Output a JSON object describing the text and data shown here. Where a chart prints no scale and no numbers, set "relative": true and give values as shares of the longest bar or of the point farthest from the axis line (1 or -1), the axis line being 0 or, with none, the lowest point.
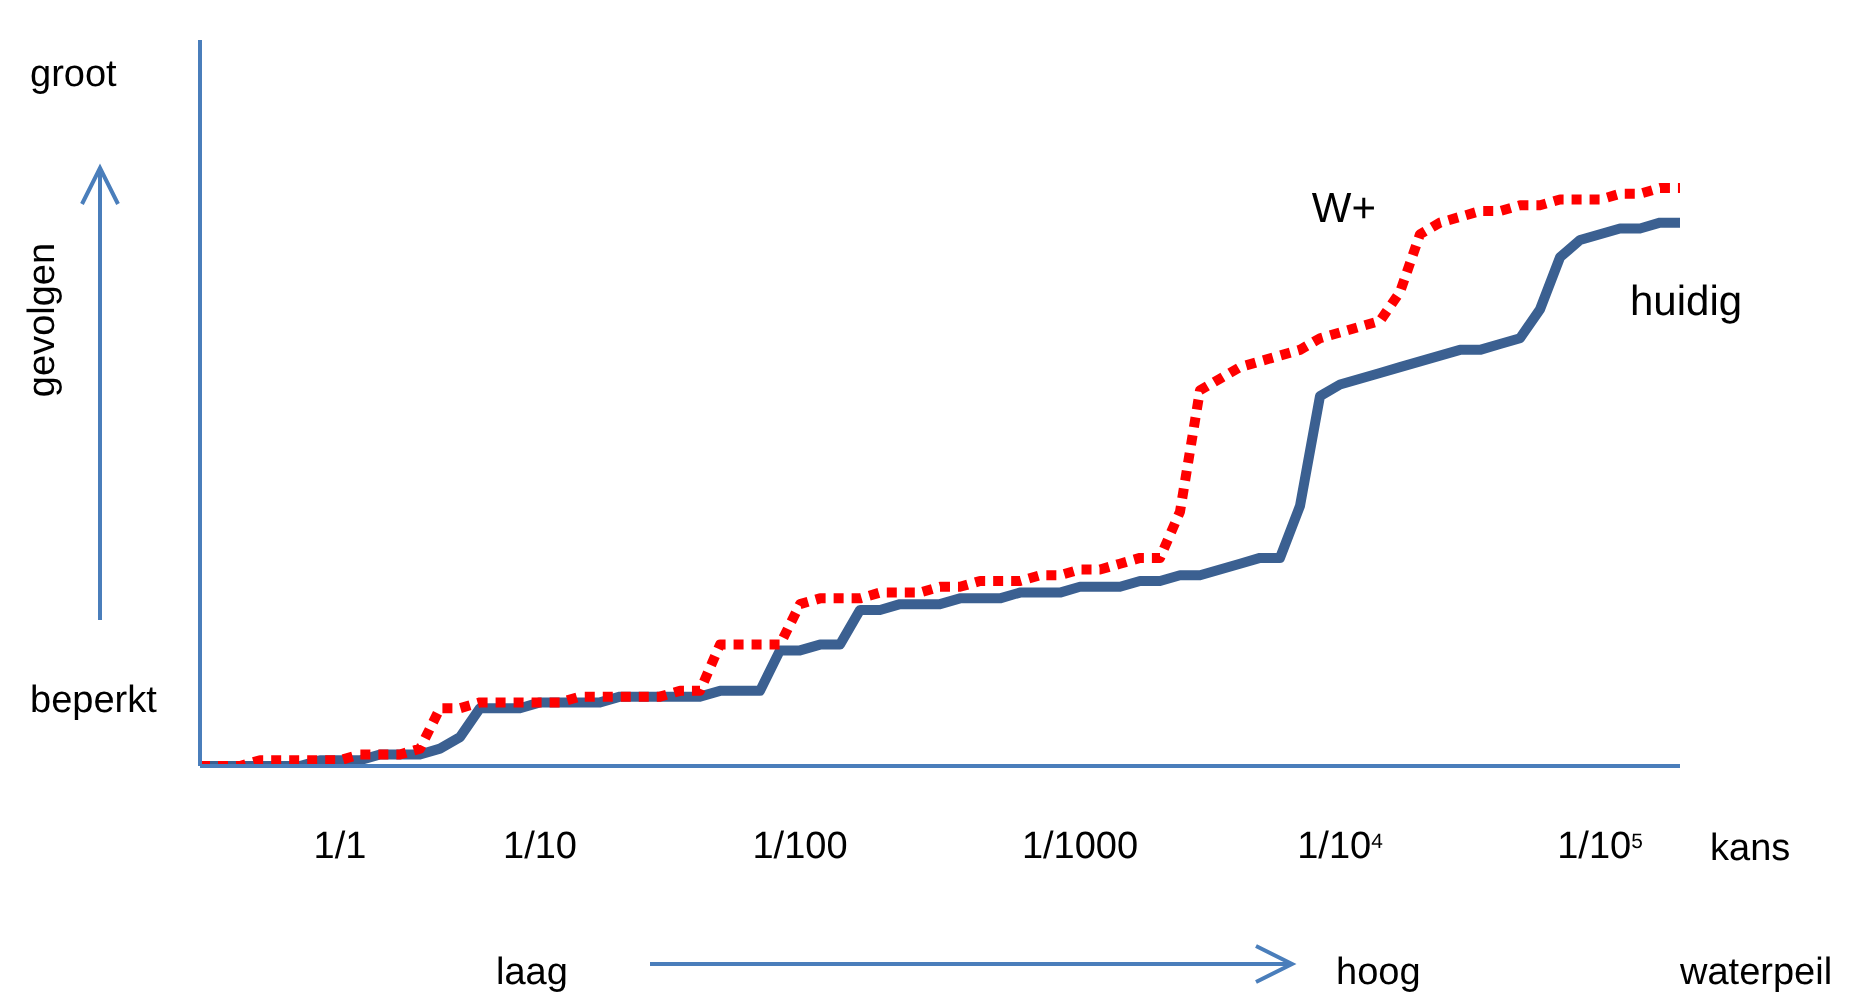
{
  "chart_data": {
    "type": "line",
    "relative": true,
    "ylabel": "gevolgen",
    "xlabel": "kans",
    "categories": [
      null,
      null,
      null,
      null,
      null,
      null,
      null,
      "1/1",
      null,
      null,
      null,
      null,
      null,
      null,
      null,
      null,
      null,
      "1/10",
      null,
      null,
      null,
      null,
      null,
      null,
      null,
      null,
      null,
      null,
      null,
      null,
      "1/100",
      null,
      null,
      null,
      null,
      null,
      null,
      null,
      null,
      null,
      null,
      null,
      null,
      null,
      "1/1000",
      null,
      null,
      null,
      null,
      null,
      null,
      null,
      null,
      null,
      null,
      null,
      null,
      "1/10$^{4}$",
      null,
      null,
      null,
      null,
      null,
      null,
      null,
      null,
      null,
      null,
      null,
      null,
      "1/10$^{5}$",
      null,
      null,
      null,
      null
    ],
    "grid": false,
    "legend": false,
    "marker": "none",
    "annotations": [
      "groot",
      "beperkt",
      "laag",
      "hoog",
      "waterpeil"
    ],
    "series": [
      {
        "name": "huidig",
        "color": "#3b6091",
        "line_style": "solid",
        "values": [
          0,
          0,
          0,
          0,
          0,
          0,
          0.01,
          0.01,
          0.01,
          0.02,
          0.02,
          0.02,
          0.03,
          0.05,
          0.1,
          0.1,
          0.1,
          0.11,
          0.11,
          0.11,
          0.11,
          0.12,
          0.12,
          0.12,
          0.12,
          0.12,
          0.13,
          0.13,
          0.13,
          0.2,
          0.2,
          0.21,
          0.21,
          0.27,
          0.27,
          0.28,
          0.28,
          0.28,
          0.29,
          0.29,
          0.29,
          0.3,
          0.3,
          0.3,
          0.31,
          0.31,
          0.31,
          0.32,
          0.32,
          0.33,
          0.33,
          0.34,
          0.35,
          0.36,
          0.36,
          0.45,
          0.64,
          0.66,
          0.67,
          0.68,
          0.69,
          0.7,
          0.71,
          0.72,
          0.72,
          0.73,
          0.74,
          0.79,
          0.88,
          0.91,
          0.92,
          0.93,
          0.93,
          0.94,
          0.94
        ]
      },
      {
        "name": "W+",
        "color": "#ff0000",
        "line_style": "dotted",
        "values": [
          0,
          0,
          0,
          0.01,
          0.01,
          0.01,
          0.01,
          0.01,
          0.02,
          0.02,
          0.02,
          0.03,
          0.1,
          0.1,
          0.11,
          0.11,
          0.11,
          0.11,
          0.11,
          0.12,
          0.12,
          0.12,
          0.12,
          0.12,
          0.13,
          0.13,
          0.21,
          0.21,
          0.21,
          0.21,
          0.28,
          0.29,
          0.29,
          0.29,
          0.3,
          0.3,
          0.3,
          0.31,
          0.31,
          0.32,
          0.32,
          0.32,
          0.33,
          0.33,
          0.34,
          0.34,
          0.35,
          0.36,
          0.36,
          0.44,
          0.65,
          0.67,
          0.69,
          0.7,
          0.71,
          0.72,
          0.74,
          0.75,
          0.76,
          0.77,
          0.82,
          0.92,
          0.94,
          0.95,
          0.96,
          0.96,
          0.97,
          0.97,
          0.98,
          0.98,
          0.98,
          0.99,
          0.99,
          1,
          1
        ]
      }
    ]
  }
}
